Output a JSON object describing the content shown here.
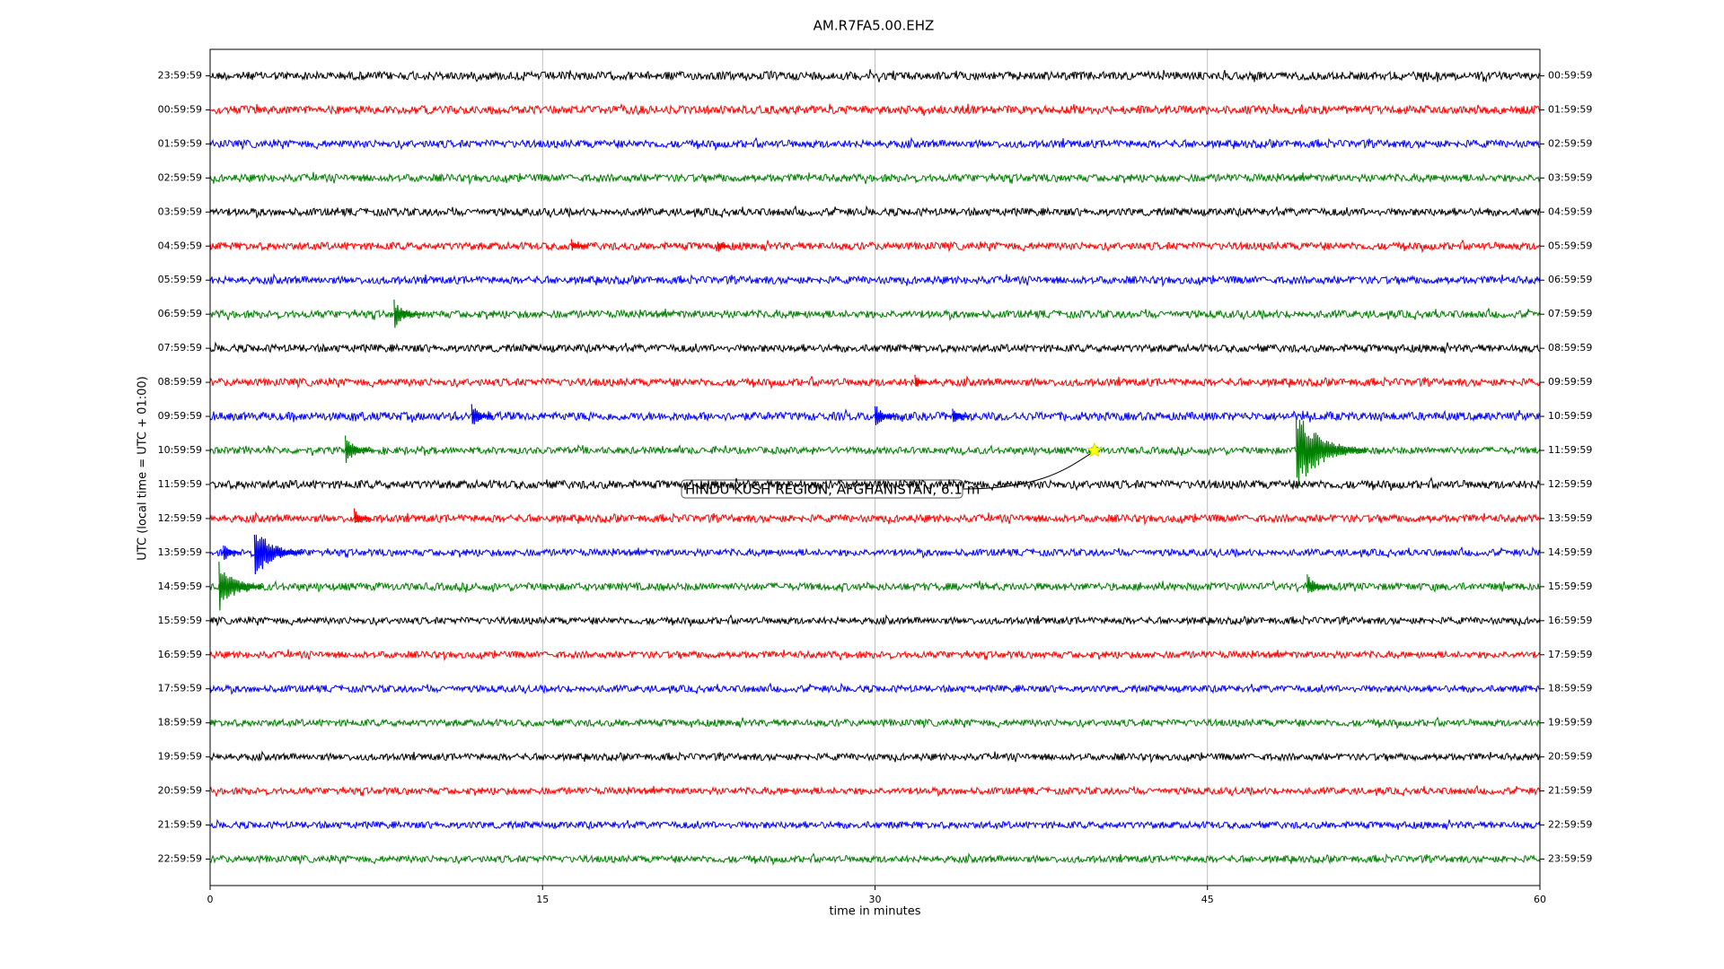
{
  "chart_data": {
    "type": "dayplot",
    "title": "AM.R7FA5.00.EHZ",
    "xlabel": "time in minutes",
    "ylabel": "UTC (local time = UTC + 01:00)",
    "xlim": [
      0,
      60
    ],
    "xticks": [
      0,
      15,
      30,
      45,
      60
    ],
    "grid": true,
    "rows": [
      {
        "label": "23:59:59",
        "right_label": "00:59:59",
        "color": "#000000",
        "noise": 0.12,
        "events": []
      },
      {
        "label": "00:59:59",
        "right_label": "01:59:59",
        "color": "#ff0000",
        "noise": 0.12,
        "events": []
      },
      {
        "label": "01:59:59",
        "right_label": "02:59:59",
        "color": "#0000ff",
        "noise": 0.11,
        "events": []
      },
      {
        "label": "02:59:59",
        "right_label": "03:59:59",
        "color": "#008000",
        "noise": 0.11,
        "events": []
      },
      {
        "label": "03:59:59",
        "right_label": "04:59:59",
        "color": "#000000",
        "noise": 0.11,
        "events": []
      },
      {
        "label": "04:59:59",
        "right_label": "05:59:59",
        "color": "#ff0000",
        "noise": 0.11,
        "events": [
          {
            "x": 16.3,
            "amp": 0.15
          },
          {
            "x": 22.9,
            "amp": 0.15
          }
        ]
      },
      {
        "label": "05:59:59",
        "right_label": "06:59:59",
        "color": "#0000ff",
        "noise": 0.11,
        "events": []
      },
      {
        "label": "06:59:59",
        "right_label": "07:59:59",
        "color": "#008000",
        "noise": 0.11,
        "events": [
          {
            "x": 8.3,
            "amp": 0.3
          }
        ]
      },
      {
        "label": "07:59:59",
        "right_label": "08:59:59",
        "color": "#000000",
        "noise": 0.11,
        "events": []
      },
      {
        "label": "08:59:59",
        "right_label": "09:59:59",
        "color": "#ff0000",
        "noise": 0.11,
        "events": [
          {
            "x": 31.8,
            "amp": 0.15
          }
        ]
      },
      {
        "label": "09:59:59",
        "right_label": "10:59:59",
        "color": "#0000ff",
        "noise": 0.12,
        "events": [
          {
            "x": 11.8,
            "amp": 0.25
          },
          {
            "x": 30.0,
            "amp": 0.25
          },
          {
            "x": 33.5,
            "amp": 0.2
          }
        ]
      },
      {
        "label": "10:59:59",
        "right_label": "11:59:59",
        "color": "#008000",
        "noise": 0.1,
        "events": [
          {
            "x": 6.1,
            "amp": 0.3
          },
          {
            "x": 49.0,
            "amp": 0.8
          }
        ],
        "annotation": {
          "text": "HINDU KUSH REGION, AFGHANISTAN, 6.1 m",
          "x": 39.9
        }
      },
      {
        "label": "11:59:59",
        "right_label": "12:59:59",
        "color": "#000000",
        "noise": 0.12,
        "events": []
      },
      {
        "label": "12:59:59",
        "right_label": "13:59:59",
        "color": "#ff0000",
        "noise": 0.11,
        "events": [
          {
            "x": 6.5,
            "amp": 0.2
          }
        ]
      },
      {
        "label": "13:59:59",
        "right_label": "14:59:59",
        "color": "#0000ff",
        "noise": 0.1,
        "events": [
          {
            "x": 0.6,
            "amp": 0.2
          },
          {
            "x": 2.0,
            "amp": 0.55
          }
        ]
      },
      {
        "label": "14:59:59",
        "right_label": "15:59:59",
        "color": "#008000",
        "noise": 0.11,
        "events": [
          {
            "x": 0.4,
            "amp": 0.5
          },
          {
            "x": 49.5,
            "amp": 0.25
          }
        ]
      },
      {
        "label": "15:59:59",
        "right_label": "16:59:59",
        "color": "#000000",
        "noise": 0.1,
        "events": []
      },
      {
        "label": "16:59:59",
        "right_label": "17:59:59",
        "color": "#ff0000",
        "noise": 0.1,
        "events": []
      },
      {
        "label": "17:59:59",
        "right_label": "18:59:59",
        "color": "#0000ff",
        "noise": 0.1,
        "events": []
      },
      {
        "label": "18:59:59",
        "right_label": "19:59:59",
        "color": "#008000",
        "noise": 0.1,
        "events": []
      },
      {
        "label": "19:59:59",
        "right_label": "20:59:59",
        "color": "#000000",
        "noise": 0.1,
        "events": []
      },
      {
        "label": "20:59:59",
        "right_label": "21:59:59",
        "color": "#ff0000",
        "noise": 0.1,
        "events": []
      },
      {
        "label": "21:59:59",
        "right_label": "22:59:59",
        "color": "#0000ff",
        "noise": 0.1,
        "events": []
      },
      {
        "label": "22:59:59",
        "right_label": "23:59:59",
        "color": "#008000",
        "noise": 0.1,
        "events": []
      }
    ]
  }
}
